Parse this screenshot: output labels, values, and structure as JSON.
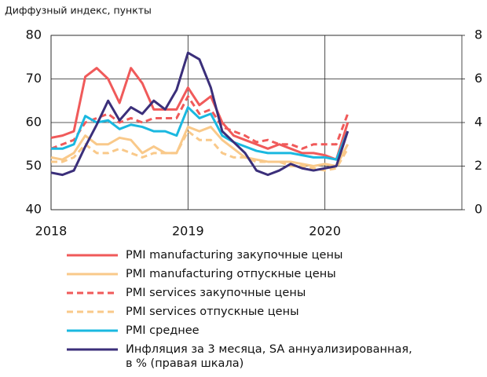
{
  "chart_data": {
    "type": "line",
    "y_label": "Диффузный индекс, пункты",
    "x": [
      0,
      1,
      2,
      3,
      4,
      5,
      6,
      7,
      8,
      9,
      10,
      11,
      12,
      13,
      14,
      15,
      16,
      17,
      18,
      19,
      20,
      21,
      22,
      23,
      24,
      25,
      26
    ],
    "xlim": [
      0,
      36
    ],
    "xticks": [
      {
        "value": 0,
        "label": "2018"
      },
      {
        "value": 12,
        "label": "2019"
      },
      {
        "value": 24,
        "label": "2020"
      }
    ],
    "ylim": [
      40,
      80
    ],
    "yticks": [
      40,
      50,
      60,
      70,
      80
    ],
    "y2lim": [
      0,
      8
    ],
    "y2ticks": [
      0,
      2,
      4,
      6,
      8
    ],
    "grid": true,
    "series": [
      {
        "name": "PMI manufacturing закупочные цены",
        "color": "#f05a5a",
        "dashed": false,
        "values": [
          56.5,
          57,
          58,
          70.5,
          72.5,
          70,
          64.5,
          72.5,
          69,
          63,
          63,
          63,
          68,
          64,
          66,
          60,
          57,
          56,
          55,
          54,
          55,
          54,
          53,
          53,
          52.5,
          51.5,
          60
        ]
      },
      {
        "name": "PMI manufacturing отпускные цены",
        "color": "#f9c98a",
        "dashed": false,
        "values": [
          52,
          51.5,
          53,
          57,
          55,
          55,
          56.5,
          56,
          53,
          54.5,
          53,
          53,
          59,
          58,
          59,
          56,
          54,
          52,
          51.5,
          51,
          51,
          51,
          50.5,
          50,
          50.5,
          50,
          55
        ]
      },
      {
        "name": "PMI services закупочные цены",
        "color": "#f05a5a",
        "dashed": true,
        "values": [
          54,
          55,
          56,
          60,
          61,
          62,
          60,
          61,
          60,
          61,
          61,
          61,
          66,
          62,
          63,
          59,
          58,
          57,
          55.5,
          56,
          55,
          55,
          54,
          55,
          55,
          55,
          62
        ]
      },
      {
        "name": "PMI services отпускные цены",
        "color": "#f9c98a",
        "dashed": true,
        "values": [
          51,
          51,
          52,
          55,
          53,
          53,
          54,
          53,
          52,
          53,
          53,
          53,
          58,
          56,
          56,
          53,
          52,
          52,
          51,
          51,
          51,
          50,
          50,
          49.5,
          49,
          49.5,
          54
        ]
      },
      {
        "name": "PMI среднее",
        "color": "#1ab8e0",
        "dashed": false,
        "values": [
          54,
          54,
          55,
          61.5,
          60,
          60.5,
          58.5,
          59.5,
          59,
          58,
          58,
          57,
          63.5,
          61,
          62,
          57,
          55.5,
          54.5,
          53.5,
          53,
          53,
          53,
          52.5,
          52,
          52,
          51.5,
          58
        ]
      },
      {
        "name": "Инфляция за 3 месяца, SA аннуализированная,\nв % (правая шкала)",
        "color": "#3b2f7a",
        "dashed": false,
        "axis": "y2",
        "values": [
          1.7,
          1.6,
          1.8,
          2.9,
          3.9,
          5.0,
          4.1,
          4.7,
          4.4,
          5.0,
          4.6,
          5.5,
          7.2,
          6.9,
          5.6,
          3.6,
          3.1,
          2.6,
          1.8,
          1.6,
          1.8,
          2.1,
          1.9,
          1.8,
          1.9,
          2.0,
          3.6
        ]
      }
    ]
  }
}
